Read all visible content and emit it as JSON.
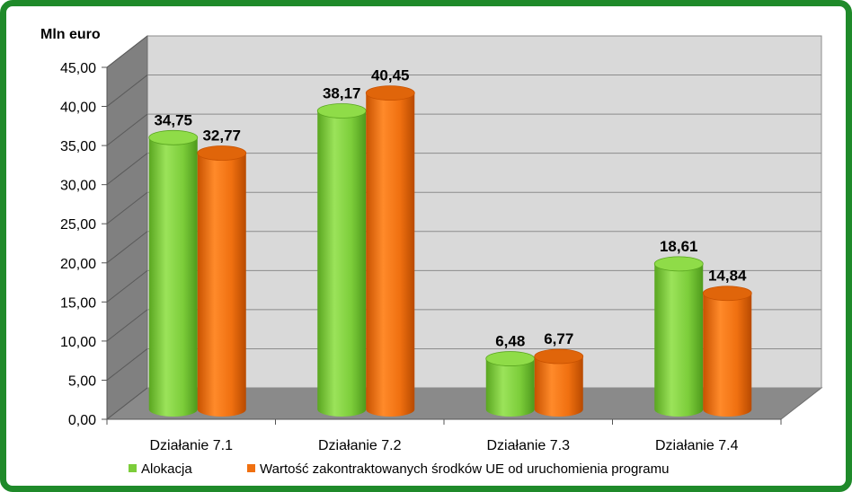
{
  "chart_data": {
    "type": "bar",
    "unit_label": "Mln euro",
    "categories": [
      "Działanie 7.1",
      "Działanie 7.2",
      "Działanie 7.3",
      "Działanie 7.4"
    ],
    "series": [
      {
        "name": "Alokacja",
        "color": "#7ccd3a",
        "values": [
          34.75,
          38.17,
          6.48,
          18.61
        ],
        "labels": [
          "34,75",
          "38,17",
          "6,48",
          "18,61"
        ]
      },
      {
        "name": "Wartość zakontraktowanych środków UE od uruchomienia programu",
        "color": "#f07010",
        "values": [
          32.77,
          40.45,
          6.77,
          14.84
        ],
        "labels": [
          "32,77",
          "40,45",
          "6,77",
          "14,84"
        ]
      }
    ],
    "ylim": [
      0,
      45
    ],
    "yticks": [
      "0,00",
      "5,00",
      "10,00",
      "15,00",
      "20,00",
      "25,00",
      "30,00",
      "35,00",
      "40,00",
      "45,00"
    ],
    "grid": true,
    "legend": "bottom"
  }
}
